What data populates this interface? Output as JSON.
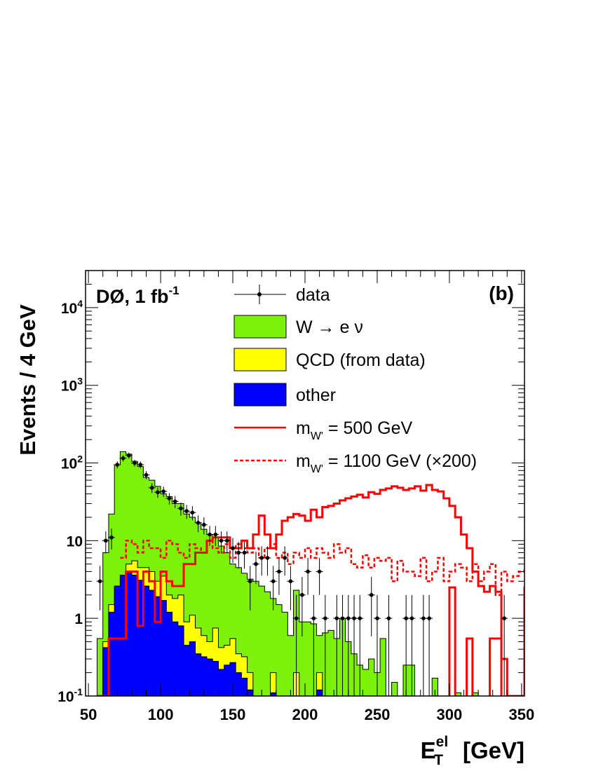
{
  "chart_data": {
    "type": "histogram",
    "log_y": true,
    "experiment_label": "DØ, 1 fb",
    "experiment_label_sup": "-1",
    "panel_label": "(b)",
    "xlabel": "E",
    "xlabel_sup": "el",
    "xlabel_sub": "T",
    "xlabel_unit": "[GeV]",
    "ylabel": "Events /  4  GeV",
    "xlim": [
      48,
      352
    ],
    "ylim": [
      0.1,
      30000
    ],
    "bin_width": 4,
    "x_ticks": [
      "50",
      "100",
      "150",
      "200",
      "250",
      "300",
      "350"
    ],
    "y_tick_labels": [
      {
        "base": "10",
        "exp": "-1",
        "value": 0.1
      },
      {
        "base": "1",
        "exp": "",
        "value": 1
      },
      {
        "base": "10",
        "exp": "",
        "value": 10
      },
      {
        "base": "10",
        "exp": "2",
        "value": 100
      },
      {
        "base": "10",
        "exp": "3",
        "value": 1000
      },
      {
        "base": "10",
        "exp": "4",
        "value": 10000
      }
    ],
    "legend": [
      {
        "id": "data",
        "label": "data",
        "style": "marker"
      },
      {
        "id": "wenu",
        "label": "W → e ν",
        "style": "fill",
        "color": "#7cf20a"
      },
      {
        "id": "qcd",
        "label": "QCD (from data)",
        "style": "fill",
        "color": "#ffff00"
      },
      {
        "id": "other",
        "label": "other",
        "style": "fill",
        "color": "#0000ff"
      },
      {
        "id": "wp500",
        "label": "= 500 GeV",
        "prefix": "m",
        "sub": "W'",
        "style": "line",
        "color": "#ff0000"
      },
      {
        "id": "wp1100",
        "label": "= 1100 GeV (×200)",
        "prefix": "m",
        "sub": "W'",
        "style": "dashed",
        "color": "#ff0000"
      }
    ],
    "series": {
      "total_bkg": {
        "x_start": 56,
        "values": [
          0.55,
          7,
          22,
          95,
          140,
          130,
          105,
          90,
          65,
          60,
          50,
          40,
          37,
          30,
          30,
          22,
          20,
          17,
          14,
          12,
          11,
          8.5,
          7,
          5,
          4.5,
          3.8,
          3.2,
          3,
          2.6,
          2.2,
          1.8,
          1.5,
          1.2,
          0.6,
          2.3,
          0.9,
          0.9,
          0.85,
          0.6,
          0.65,
          0.7,
          0.55,
          1,
          0.5,
          0.35,
          0.25,
          0.22,
          0.3,
          0.2,
          0.55,
          0.1,
          0.15,
          0.1,
          0.25,
          0.25,
          0.1,
          0.1,
          0.1,
          0.17,
          0.1,
          0.1,
          0.1,
          0.11,
          0.1,
          0.1,
          0.11,
          0.1,
          0.1,
          0.1,
          0.1,
          0.1,
          0.1,
          0.1,
          0.1
        ]
      },
      "qcd_plus_other": {
        "x_start": 60,
        "values": [
          0.5,
          1.5,
          2.5,
          3.5,
          5,
          5.5,
          4.5,
          4.5,
          4,
          3,
          3.5,
          2,
          1.8,
          2,
          0.9,
          1.1,
          0.75,
          0.6,
          0.5,
          0.75,
          0.42,
          0.45,
          0.55,
          0.35,
          0.32,
          0.2,
          0.1,
          0.1,
          0.1,
          0.2,
          0.1,
          0.1,
          0.1,
          0.2,
          0.1,
          0.1,
          0.1,
          0.2
        ]
      },
      "other": {
        "x_start": 60,
        "values": [
          0.42,
          1.2,
          2.6,
          3.6,
          4,
          3.6,
          3.1,
          2.6,
          2.3,
          1.9,
          1.7,
          1.2,
          0.9,
          0.8,
          0.45,
          0.5,
          0.35,
          0.32,
          0.3,
          0.28,
          0.22,
          0.25,
          0.27,
          0.2,
          0.17,
          0.12,
          0.1,
          0.1,
          0.1,
          0.11,
          0.1,
          0.1,
          0.1,
          0.1,
          0.1,
          0.1,
          0.1,
          0.12
        ]
      },
      "wprime_500": {
        "x_start": 56,
        "values": [
          0.1,
          0.1,
          0.55,
          0.55,
          0.55,
          4,
          4,
          0.8,
          4,
          3,
          0.9,
          4,
          3,
          2.6,
          2.6,
          5,
          5,
          7,
          7,
          10,
          11,
          11,
          11,
          8,
          8,
          10,
          8,
          12,
          21,
          12,
          8,
          12,
          18,
          20,
          22,
          21,
          18,
          25,
          20,
          27,
          28,
          30,
          33,
          35,
          37,
          39,
          36,
          42,
          40,
          45,
          47,
          50,
          48,
          45,
          47,
          50,
          44,
          52,
          45,
          43,
          35,
          28,
          20,
          12,
          8,
          4,
          2.6,
          2.2,
          2.6,
          2.2,
          0.3,
          0.1,
          0.1,
          0.1,
          2.5,
          0.27,
          0.1,
          0.1,
          0.1,
          0.1,
          0.1,
          0.1,
          0.1,
          0.1,
          0.1,
          0.1,
          0.1,
          0.1,
          0.1,
          0.1,
          0.1,
          0.1,
          0.1,
          0.1
        ]
      },
      "wprime_500_spikes": [
        {
          "x0": 300,
          "x1": 304,
          "value": 2.5
        },
        {
          "x0": 312,
          "x1": 316,
          "value": 0.55
        },
        {
          "x0": 328,
          "x1": 336,
          "value": 0.55
        }
      ],
      "wprime_1100_x200": {
        "x_start": 72,
        "values": [
          6,
          10,
          9,
          7,
          10,
          8,
          8,
          6,
          10,
          9,
          7,
          6,
          9,
          8,
          7,
          10,
          8,
          7,
          9,
          6,
          9,
          8,
          7,
          8,
          6,
          8,
          9,
          6,
          7,
          5,
          7,
          6,
          8,
          6,
          8,
          7,
          6,
          9,
          7,
          8,
          5,
          4.5,
          6.5,
          4.5,
          6,
          5.5,
          6,
          3,
          5.5,
          4,
          4,
          3.5,
          6,
          3,
          4,
          6,
          3,
          4,
          5,
          4.5,
          3,
          5,
          3,
          4,
          5,
          2,
          4,
          3,
          3.5,
          4,
          4.2,
          5.5,
          5,
          4.5,
          4.5,
          4,
          3.8,
          4
        ]
      },
      "data": {
        "x_start": 56,
        "values": [
          3,
          10,
          11,
          95,
          115,
          125,
          100,
          95,
          70,
          48,
          42,
          43,
          35,
          32,
          26,
          24,
          23,
          17,
          16,
          12,
          12,
          10,
          10,
          8,
          7,
          7,
          3,
          5,
          6,
          6,
          3,
          4,
          6,
          3,
          1,
          2,
          4,
          1,
          4,
          1,
          0,
          1,
          1,
          1,
          1,
          1,
          0,
          2,
          1,
          0,
          1,
          0,
          0,
          1,
          1,
          0,
          1,
          1,
          0,
          0,
          0,
          0,
          0,
          0,
          0,
          0,
          0,
          0,
          0,
          0,
          1
        ]
      }
    }
  }
}
